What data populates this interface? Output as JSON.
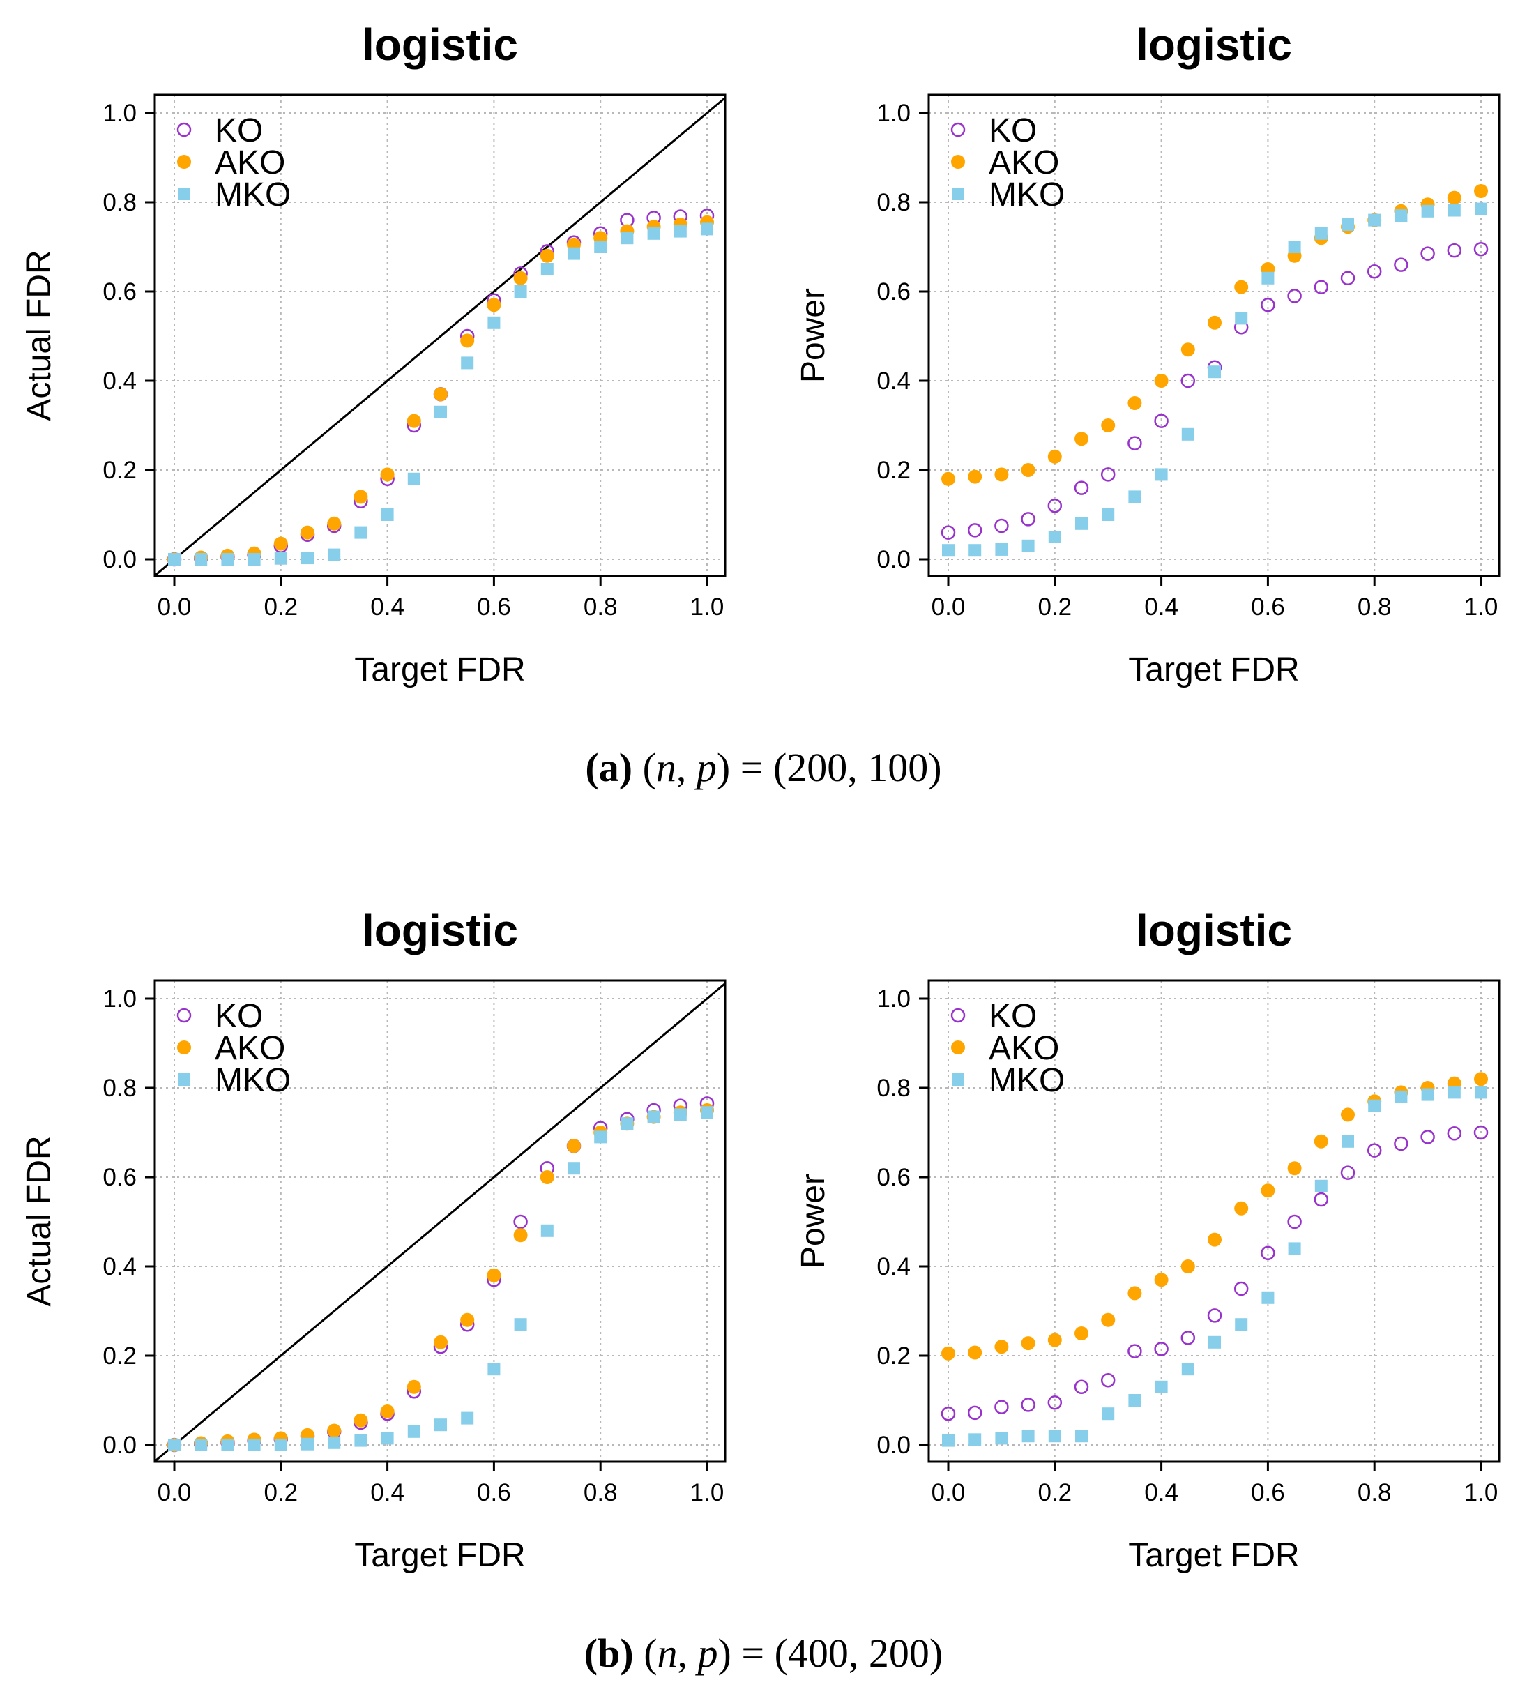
{
  "figure": {
    "caption_a": {
      "label": "(a)",
      "math_lhs": "n",
      "math_mid": "p",
      "equals": "=",
      "value": "(200, 100)"
    },
    "caption_b": {
      "label": "(b)",
      "math_lhs": "n",
      "math_mid": "p",
      "equals": "=",
      "value": "(400, 200)"
    }
  },
  "colors": {
    "KO": "#9932CC",
    "AKO": "#FFA500",
    "MKO": "#87CEEB"
  },
  "chart_data": [
    {
      "type": "scatter",
      "panel": "a-left",
      "title": "logistic",
      "xlabel": "Target FDR",
      "ylabel": "Actual FDR",
      "xlim": [
        0,
        1
      ],
      "ylim": [
        0,
        1
      ],
      "grid": true,
      "legend": "top-left",
      "xticks": [
        "0.0",
        "0.2",
        "0.4",
        "0.6",
        "0.8",
        "1.0"
      ],
      "yticks": [
        "0.0",
        "0.2",
        "0.4",
        "0.6",
        "0.8",
        "1.0"
      ],
      "diagonal": true,
      "x": [
        0,
        0.05,
        0.1,
        0.15,
        0.2,
        0.25,
        0.3,
        0.35,
        0.4,
        0.45,
        0.5,
        0.55,
        0.6,
        0.65,
        0.7,
        0.75,
        0.8,
        0.85,
        0.9,
        0.95,
        1.0
      ],
      "series": [
        {
          "name": "KO",
          "marker": "open-circle",
          "values": [
            0,
            0.003,
            0.006,
            0.01,
            0.03,
            0.055,
            0.075,
            0.13,
            0.18,
            0.3,
            0.37,
            0.5,
            0.58,
            0.64,
            0.69,
            0.71,
            0.73,
            0.76,
            0.765,
            0.768,
            0.77
          ]
        },
        {
          "name": "AKO",
          "marker": "filled-circle",
          "values": [
            0,
            0.004,
            0.008,
            0.013,
            0.035,
            0.06,
            0.08,
            0.14,
            0.19,
            0.31,
            0.37,
            0.49,
            0.57,
            0.63,
            0.68,
            0.705,
            0.72,
            0.735,
            0.745,
            0.75,
            0.755
          ]
        },
        {
          "name": "MKO",
          "marker": "filled-square",
          "values": [
            0,
            0,
            0,
            0,
            0.002,
            0.003,
            0.01,
            0.06,
            0.1,
            0.18,
            0.33,
            0.44,
            0.53,
            0.6,
            0.65,
            0.685,
            0.7,
            0.72,
            0.73,
            0.735,
            0.74
          ]
        }
      ]
    },
    {
      "type": "scatter",
      "panel": "a-right",
      "title": "logistic",
      "xlabel": "Target FDR",
      "ylabel": "Power",
      "xlim": [
        0,
        1
      ],
      "ylim": [
        0,
        1
      ],
      "grid": true,
      "legend": "top-left",
      "xticks": [
        "0.0",
        "0.2",
        "0.4",
        "0.6",
        "0.8",
        "1.0"
      ],
      "yticks": [
        "0.0",
        "0.2",
        "0.4",
        "0.6",
        "0.8",
        "1.0"
      ],
      "diagonal": false,
      "x": [
        0,
        0.05,
        0.1,
        0.15,
        0.2,
        0.25,
        0.3,
        0.35,
        0.4,
        0.45,
        0.5,
        0.55,
        0.6,
        0.65,
        0.7,
        0.75,
        0.8,
        0.85,
        0.9,
        0.95,
        1.0
      ],
      "series": [
        {
          "name": "KO",
          "marker": "open-circle",
          "values": [
            0.06,
            0.065,
            0.075,
            0.09,
            0.12,
            0.16,
            0.19,
            0.26,
            0.31,
            0.4,
            0.43,
            0.52,
            0.57,
            0.59,
            0.61,
            0.63,
            0.645,
            0.66,
            0.685,
            0.692,
            0.695
          ]
        },
        {
          "name": "AKO",
          "marker": "filled-circle",
          "values": [
            0.18,
            0.185,
            0.19,
            0.2,
            0.23,
            0.27,
            0.3,
            0.35,
            0.4,
            0.47,
            0.53,
            0.61,
            0.65,
            0.68,
            0.72,
            0.745,
            0.76,
            0.78,
            0.795,
            0.81,
            0.825
          ]
        },
        {
          "name": "MKO",
          "marker": "filled-square",
          "values": [
            0.02,
            0.02,
            0.022,
            0.03,
            0.05,
            0.08,
            0.1,
            0.14,
            0.19,
            0.28,
            0.42,
            0.54,
            0.63,
            0.7,
            0.73,
            0.75,
            0.76,
            0.77,
            0.78,
            0.782,
            0.785
          ]
        }
      ]
    },
    {
      "type": "scatter",
      "panel": "b-left",
      "title": "logistic",
      "xlabel": "Target FDR",
      "ylabel": "Actual FDR",
      "xlim": [
        0,
        1
      ],
      "ylim": [
        0,
        1
      ],
      "grid": true,
      "legend": "top-left",
      "xticks": [
        "0.0",
        "0.2",
        "0.4",
        "0.6",
        "0.8",
        "1.0"
      ],
      "yticks": [
        "0.0",
        "0.2",
        "0.4",
        "0.6",
        "0.8",
        "1.0"
      ],
      "diagonal": true,
      "x": [
        0,
        0.05,
        0.1,
        0.15,
        0.2,
        0.25,
        0.3,
        0.35,
        0.4,
        0.45,
        0.5,
        0.55,
        0.6,
        0.65,
        0.7,
        0.75,
        0.8,
        0.85,
        0.9,
        0.95,
        1.0
      ],
      "series": [
        {
          "name": "KO",
          "marker": "open-circle",
          "values": [
            0,
            0.003,
            0.006,
            0.01,
            0.013,
            0.02,
            0.03,
            0.05,
            0.07,
            0.12,
            0.22,
            0.27,
            0.37,
            0.5,
            0.62,
            0.67,
            0.71,
            0.73,
            0.75,
            0.76,
            0.765
          ]
        },
        {
          "name": "AKO",
          "marker": "filled-circle",
          "values": [
            0,
            0.004,
            0.008,
            0.012,
            0.015,
            0.022,
            0.032,
            0.055,
            0.075,
            0.13,
            0.23,
            0.28,
            0.38,
            0.47,
            0.6,
            0.67,
            0.7,
            0.72,
            0.735,
            0.745,
            0.75
          ]
        },
        {
          "name": "MKO",
          "marker": "filled-square",
          "values": [
            0,
            0,
            0,
            0,
            0,
            0.002,
            0.005,
            0.01,
            0.015,
            0.03,
            0.045,
            0.06,
            0.17,
            0.27,
            0.48,
            0.62,
            0.69,
            0.72,
            0.735,
            0.74,
            0.745
          ]
        }
      ]
    },
    {
      "type": "scatter",
      "panel": "b-right",
      "title": "logistic",
      "xlabel": "Target FDR",
      "ylabel": "Power",
      "xlim": [
        0,
        1
      ],
      "ylim": [
        0,
        1
      ],
      "grid": true,
      "legend": "top-left",
      "xticks": [
        "0.0",
        "0.2",
        "0.4",
        "0.6",
        "0.8",
        "1.0"
      ],
      "yticks": [
        "0.0",
        "0.2",
        "0.4",
        "0.6",
        "0.8",
        "1.0"
      ],
      "diagonal": false,
      "x": [
        0,
        0.05,
        0.1,
        0.15,
        0.2,
        0.25,
        0.3,
        0.35,
        0.4,
        0.45,
        0.5,
        0.55,
        0.6,
        0.65,
        0.7,
        0.75,
        0.8,
        0.85,
        0.9,
        0.95,
        1.0
      ],
      "series": [
        {
          "name": "KO",
          "marker": "open-circle",
          "values": [
            0.07,
            0.072,
            0.085,
            0.09,
            0.095,
            0.13,
            0.145,
            0.21,
            0.215,
            0.24,
            0.29,
            0.35,
            0.43,
            0.5,
            0.55,
            0.61,
            0.66,
            0.675,
            0.69,
            0.698,
            0.7
          ]
        },
        {
          "name": "AKO",
          "marker": "filled-circle",
          "values": [
            0.205,
            0.207,
            0.22,
            0.228,
            0.235,
            0.25,
            0.28,
            0.34,
            0.37,
            0.4,
            0.46,
            0.53,
            0.57,
            0.62,
            0.68,
            0.74,
            0.77,
            0.79,
            0.8,
            0.81,
            0.82
          ]
        },
        {
          "name": "MKO",
          "marker": "filled-square",
          "values": [
            0.01,
            0.012,
            0.015,
            0.02,
            0.02,
            0.02,
            0.07,
            0.1,
            0.13,
            0.17,
            0.23,
            0.27,
            0.33,
            0.44,
            0.58,
            0.68,
            0.76,
            0.78,
            0.785,
            0.79,
            0.79
          ]
        }
      ]
    }
  ]
}
